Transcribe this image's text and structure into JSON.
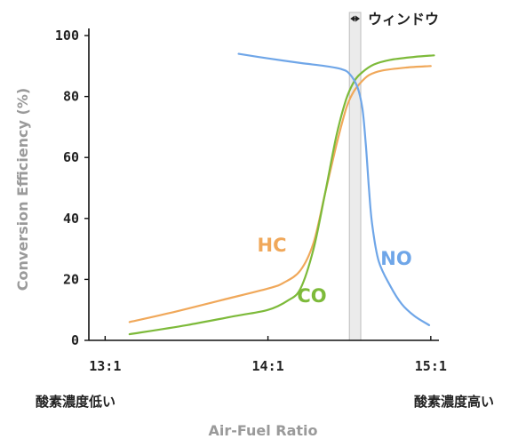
{
  "chart_data": {
    "type": "line",
    "xlabel": "Air-Fuel Ratio",
    "ylabel": "Conversion Efficiency (%)",
    "xlim": [
      12.9,
      15.05
    ],
    "ylim": [
      0,
      100
    ],
    "x_ticks": [
      {
        "value": 13.0,
        "label": "13:1"
      },
      {
        "value": 14.0,
        "label": "14:1"
      },
      {
        "value": 15.0,
        "label": "15:1"
      }
    ],
    "y_ticks": [
      0,
      20,
      40,
      60,
      80,
      100
    ],
    "x_side_labels": {
      "left": "酸素濃度低い",
      "right": "酸素濃度高い"
    },
    "window": {
      "label": "ウィンドウ",
      "x_start": 14.5,
      "x_end": 14.57
    },
    "series": [
      {
        "name": "HC",
        "color": "#f0a85a",
        "x": [
          13.15,
          13.4,
          13.7,
          14.0,
          14.1,
          14.2,
          14.28,
          14.35,
          14.42,
          14.48,
          14.52,
          14.56,
          14.62,
          14.7,
          14.85,
          15.0
        ],
        "y": [
          6,
          9,
          13,
          17,
          19,
          23,
          32,
          48,
          64,
          76,
          81,
          84,
          87,
          88.5,
          89.5,
          90
        ]
      },
      {
        "name": "CO",
        "color": "#7dba3a",
        "x": [
          13.15,
          13.5,
          13.8,
          14.0,
          14.12,
          14.2,
          14.28,
          14.35,
          14.42,
          14.48,
          14.53,
          14.58,
          14.65,
          14.75,
          14.9,
          15.02
        ],
        "y": [
          2,
          5,
          8,
          10,
          13,
          17,
          30,
          48,
          67,
          79,
          85,
          88,
          90.5,
          92,
          93,
          93.5
        ]
      },
      {
        "name": "NO",
        "color": "#6fa6e8",
        "x": [
          13.82,
          14.0,
          14.2,
          14.35,
          14.45,
          14.5,
          14.55,
          14.58,
          14.6,
          14.62,
          14.64,
          14.68,
          14.75,
          14.82,
          14.9,
          14.99
        ],
        "y": [
          94,
          92.5,
          91,
          90,
          89,
          87.5,
          83,
          76,
          65,
          50,
          38,
          26,
          18,
          12,
          8,
          5
        ]
      }
    ]
  }
}
